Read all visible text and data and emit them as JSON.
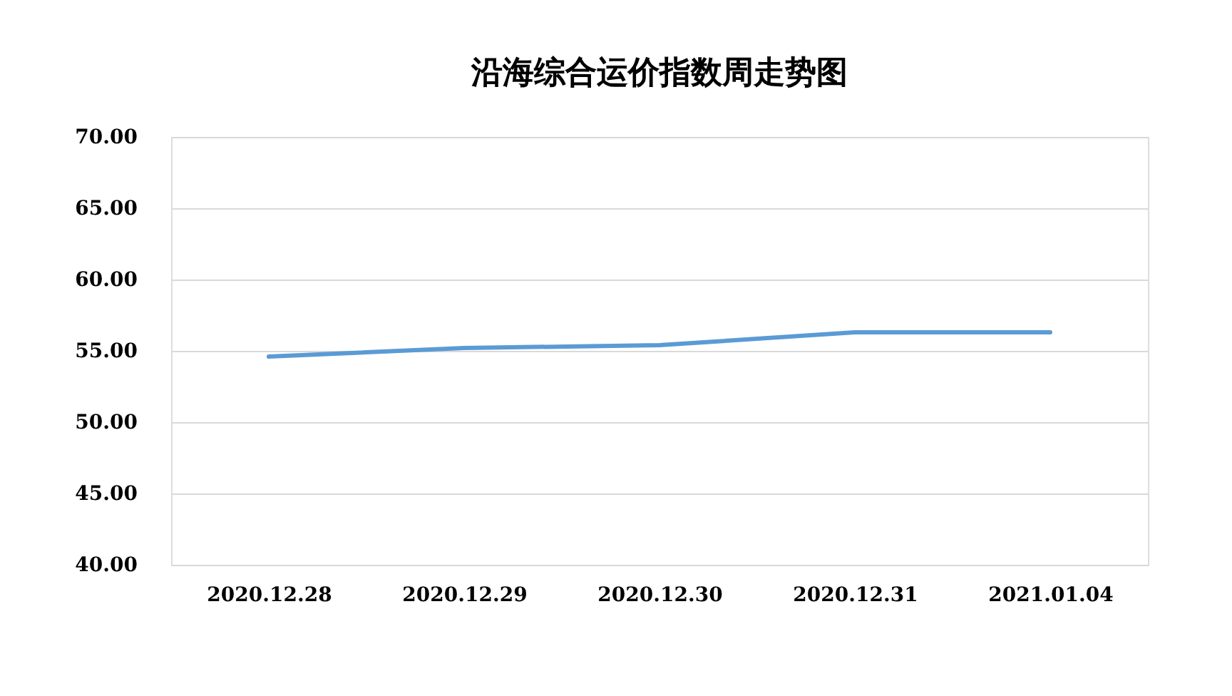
{
  "chart_data": {
    "type": "line",
    "title": "沿海综合运价指数周走势图",
    "categories": [
      "2020.12.28",
      "2020.12.29",
      "2020.12.30",
      "2020.12.31",
      "2021.01.04"
    ],
    "series": [
      {
        "color": "#5b9bd5",
        "values": [
          54.6,
          55.2,
          55.4,
          56.3,
          56.3
        ]
      }
    ],
    "ylim": [
      40,
      70
    ],
    "yticks": [
      {
        "value": 40,
        "label": "40.00"
      },
      {
        "value": 45,
        "label": "45.00"
      },
      {
        "value": 50,
        "label": "50.00"
      },
      {
        "value": 55,
        "label": "55.00"
      },
      {
        "value": 60,
        "label": "60.00"
      },
      {
        "value": 65,
        "label": "65.00"
      },
      {
        "value": 70,
        "label": "70.00"
      }
    ],
    "grid": "y",
    "legend": false,
    "marker": "none",
    "line_style": "solid"
  }
}
